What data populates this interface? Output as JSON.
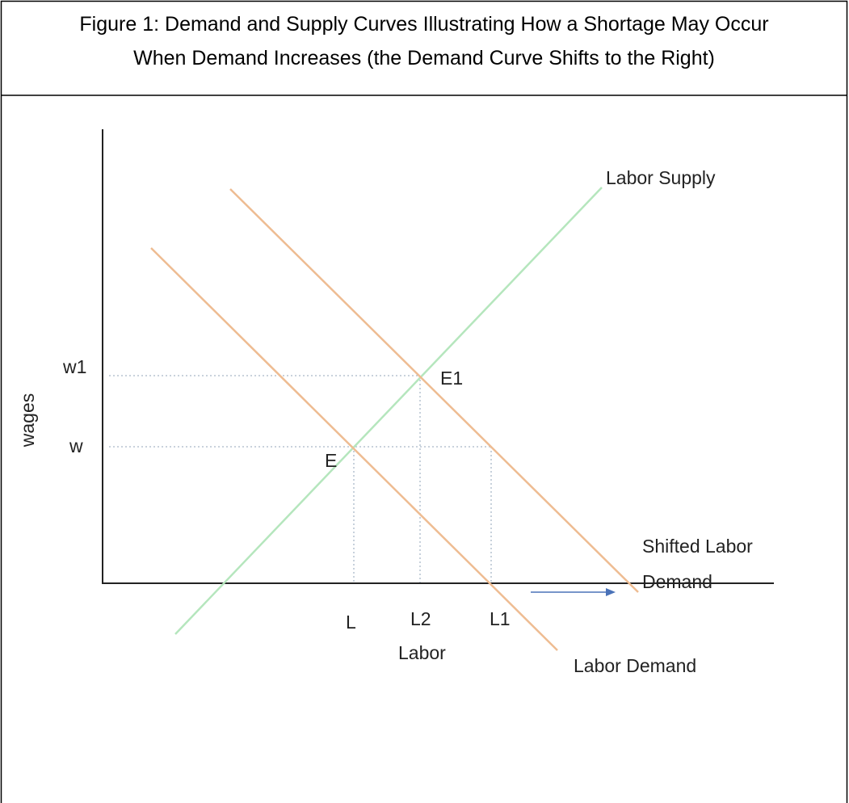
{
  "caption": [
    "Figure 1: Demand and Supply Curves Illustrating How a Shortage May Occur",
    "When Demand Increases (the Demand Curve Shifts to the Right)"
  ],
  "diagram": {
    "y_axis_label": "wages",
    "x_axis_label": "Labor",
    "y_labels": [
      "w1",
      "w"
    ],
    "x_labels": [
      "L",
      "L2",
      "L1"
    ],
    "curves": {
      "supply": "Labor Supply",
      "demand": "Labor Demand",
      "shifted_demand": [
        "Shifted Labor",
        "Demand"
      ]
    },
    "points": [
      "E",
      "E1"
    ]
  }
}
